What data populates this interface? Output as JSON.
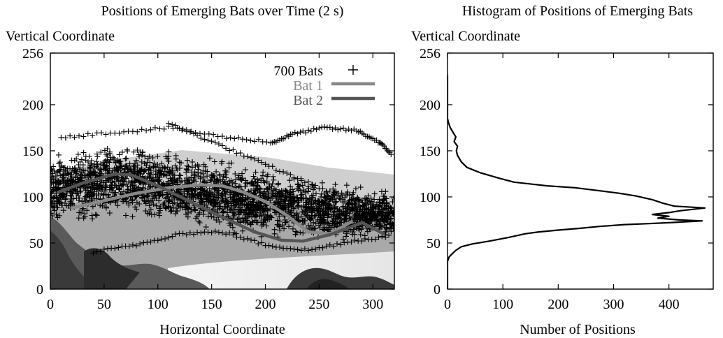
{
  "chart_data": [
    {
      "type": "scatter",
      "title": "Positions of Emerging Bats over Time (2 s)",
      "xlabel": "Horizontal Coordinate",
      "ylabel": "Vertical Coordinate",
      "xlim": [
        0,
        320
      ],
      "ylim": [
        0,
        256
      ],
      "xticks": [
        "0",
        "50",
        "100",
        "150",
        "200",
        "250",
        "300"
      ],
      "yticks": [
        "0",
        "50",
        "100",
        "150",
        "200",
        "256"
      ],
      "legend_position": "top-right",
      "background": "photograph of bat cave entrance with vegetation at bottom",
      "series": [
        {
          "name": "700 Bats",
          "marker": "+",
          "color": "#000000",
          "band_center": [
            [
              0,
              108
            ],
            [
              30,
              112
            ],
            [
              60,
              118
            ],
            [
              90,
              114
            ],
            [
              120,
              108
            ],
            [
              150,
              103
            ],
            [
              180,
              96
            ],
            [
              210,
              92
            ],
            [
              240,
              88
            ],
            [
              270,
              85
            ],
            [
              300,
              82
            ],
            [
              320,
              80
            ]
          ],
          "band_halfwidth": [
            [
              0,
              45
            ],
            [
              50,
              48
            ],
            [
              100,
              45
            ],
            [
              150,
              45
            ],
            [
              200,
              42
            ],
            [
              250,
              38
            ],
            [
              300,
              32
            ],
            [
              320,
              30
            ]
          ],
          "arcs": [
            [
              [
                10,
                165
              ],
              [
                60,
                170
              ],
              [
                110,
                175
              ],
              [
                160,
                165
              ],
              [
                205,
                160
              ]
            ],
            [
              [
                205,
                158
              ],
              [
                225,
                168
              ],
              [
                255,
                175
              ],
              [
                285,
                172
              ],
              [
                305,
                160
              ],
              [
                318,
                146
              ]
            ],
            [
              [
                110,
                180
              ],
              [
                150,
                160
              ],
              [
                190,
                140
              ],
              [
                230,
                120
              ],
              [
                270,
                100
              ]
            ],
            [
              [
                40,
                40
              ],
              [
                80,
                48
              ],
              [
                120,
                60
              ],
              [
                160,
                62
              ],
              [
                200,
                48
              ],
              [
                240,
                42
              ],
              [
                280,
                52
              ],
              [
                318,
                58
              ]
            ]
          ]
        },
        {
          "name": "Bat 1",
          "color": "#888888",
          "x": [
            20,
            50,
            80,
            110,
            140,
            160,
            180,
            200,
            220,
            240,
            260,
            280
          ],
          "y": [
            88,
            96,
            104,
            110,
            113,
            112,
            105,
            95,
            80,
            62,
            60,
            73
          ]
        },
        {
          "name": "Bat 2",
          "color": "#555555",
          "x": [
            7,
            30,
            60,
            75,
            100,
            130,
            160,
            190,
            215,
            235,
            260,
            290,
            310
          ],
          "y": [
            105,
            115,
            125,
            124,
            112,
            95,
            78,
            62,
            53,
            52,
            59,
            72,
            60
          ]
        }
      ]
    },
    {
      "type": "line",
      "title": "Histogram of Positions of Emerging Bats",
      "xlabel": "Number of Positions",
      "ylabel": "Vertical Coordinate",
      "xlim": [
        0,
        480
      ],
      "ylim": [
        0,
        256
      ],
      "xticks": [
        "0",
        "100",
        "200",
        "300",
        "400"
      ],
      "yticks": [
        "0",
        "50",
        "100",
        "150",
        "200",
        "256"
      ],
      "orientation": "horizontal-profile",
      "series": [
        {
          "name": "",
          "color": "#000000",
          "points": [
            [
              0,
              0
            ],
            [
              0,
              30
            ],
            [
              3,
              35
            ],
            [
              8,
              38
            ],
            [
              15,
              42
            ],
            [
              25,
              46
            ],
            [
              45,
              49
            ],
            [
              75,
              52
            ],
            [
              110,
              56
            ],
            [
              140,
              60
            ],
            [
              165,
              62
            ],
            [
              200,
              64
            ],
            [
              240,
              66
            ],
            [
              275,
              68
            ],
            [
              320,
              70
            ],
            [
              360,
              71
            ],
            [
              400,
              72
            ],
            [
              460,
              74
            ],
            [
              420,
              75
            ],
            [
              380,
              77
            ],
            [
              400,
              79
            ],
            [
              370,
              81
            ],
            [
              400,
              83
            ],
            [
              420,
              85
            ],
            [
              465,
              88
            ],
            [
              410,
              90
            ],
            [
              390,
              93
            ],
            [
              370,
              97
            ],
            [
              340,
              101
            ],
            [
              310,
              104
            ],
            [
              270,
              107
            ],
            [
              230,
              110
            ],
            [
              180,
              112
            ],
            [
              120,
              116
            ],
            [
              95,
              120
            ],
            [
              60,
              126
            ],
            [
              35,
              132
            ],
            [
              25,
              138
            ],
            [
              18,
              145
            ],
            [
              16,
              150
            ],
            [
              18,
              155
            ],
            [
              12,
              160
            ],
            [
              15,
              165
            ],
            [
              10,
              170
            ],
            [
              5,
              175
            ],
            [
              2,
              180
            ],
            [
              0,
              185
            ],
            [
              0,
              220
            ],
            [
              0,
              232
            ]
          ]
        }
      ]
    }
  ]
}
